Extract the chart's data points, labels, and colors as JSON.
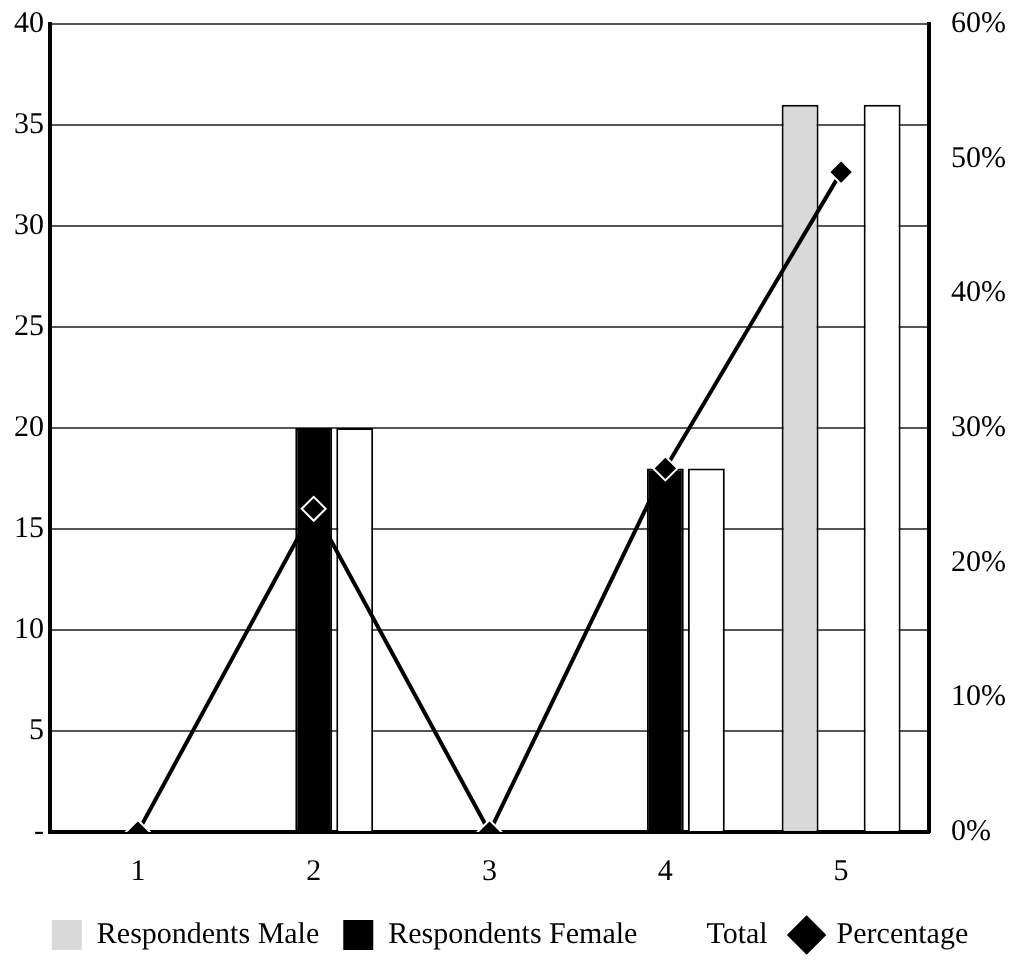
{
  "chart_data": {
    "type": "bar",
    "categories": [
      "1",
      "2",
      "3",
      "4",
      "5"
    ],
    "series": [
      {
        "name": "Respondents Male",
        "color": "#d9d9d9",
        "values": [
          0,
          0,
          0,
          0,
          36
        ]
      },
      {
        "name": "Respondents Female",
        "color": "#000000",
        "values": [
          0,
          20,
          0,
          18,
          0
        ]
      },
      {
        "name": "Total",
        "color": "#ffffff",
        "values": [
          0,
          20,
          0,
          18,
          36
        ]
      },
      {
        "name": "Percentage",
        "type": "line",
        "axis": "y2",
        "color": "#000000",
        "marker": "diamond",
        "values": [
          0,
          24,
          0,
          27,
          49
        ]
      }
    ],
    "ylim": [
      0,
      40
    ],
    "yticks": [
      {
        "value": 0,
        "label": "-"
      },
      5,
      10,
      15,
      20,
      25,
      30,
      35,
      40
    ],
    "y2lim": [
      0,
      60
    ],
    "y2ticks": [
      {
        "value": 0,
        "label": "0%"
      },
      {
        "value": 10,
        "label": "10%"
      },
      {
        "value": 20,
        "label": "20%"
      },
      {
        "value": 30,
        "label": "30%"
      },
      {
        "value": 40,
        "label": "40%"
      },
      {
        "value": 50,
        "label": "50%"
      },
      {
        "value": 60,
        "label": "60%"
      }
    ],
    "grid": "y",
    "legend": "bottom"
  }
}
